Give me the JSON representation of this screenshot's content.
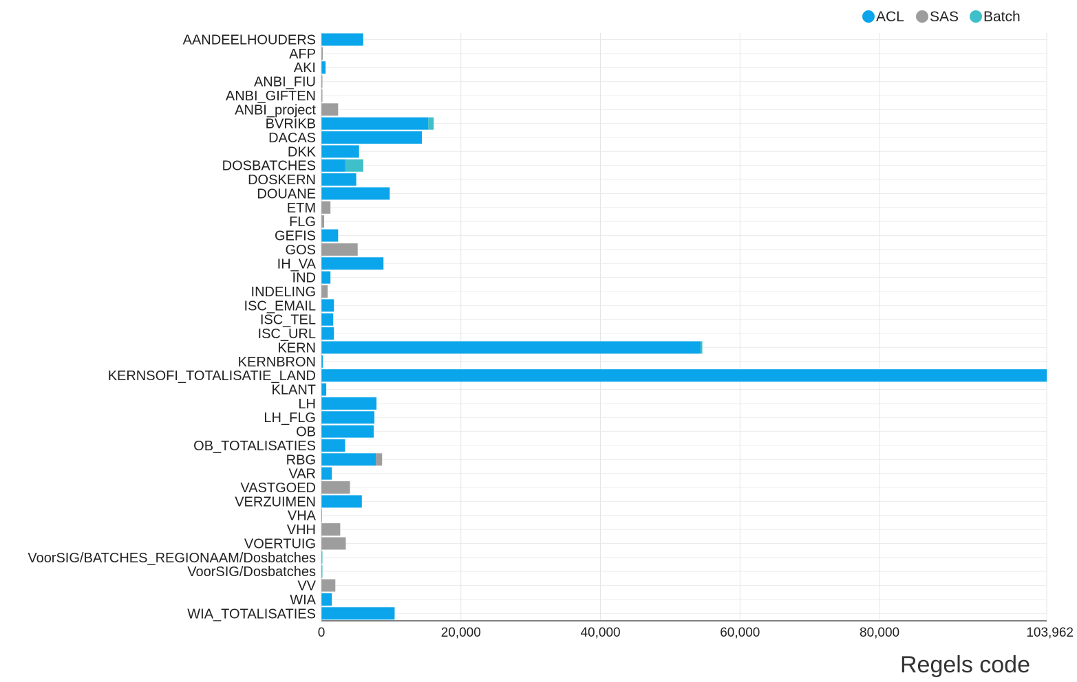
{
  "chart_data": {
    "type": "bar",
    "orientation": "horizontal",
    "stacked": true,
    "xlabel": "Regels code",
    "ylabel": "",
    "xlim": [
      0,
      103962
    ],
    "xticks": [
      0,
      20000,
      40000,
      60000,
      80000,
      103962
    ],
    "xtick_labels": [
      "0",
      "20,000",
      "40,000",
      "60,000",
      "80,000",
      "103,962"
    ],
    "grid": true,
    "legend_position": "top-right",
    "categories": [
      "AANDEELHOUDERS",
      "AFP",
      "AKI",
      "ANBI_FIU",
      "ANBI_GIFTEN",
      "ANBI_project",
      "BVRIKB",
      "DACAS",
      "DKK",
      "DOSBATCHES",
      "DOSKERN",
      "DOUANE",
      "ETM",
      "FLG",
      "GEFIS",
      "GOS",
      "IH_VA",
      "IND",
      "INDELING",
      "ISC_EMAIL",
      "ISC_TEL",
      "ISC_URL",
      "KERN",
      "KERNBRON",
      "KERNSOFI_TOTALISATIE_LAND",
      "KLANT",
      "LH",
      "LH_FLG",
      "OB",
      "OB_TOTALISATIES",
      "RBG",
      "VAR",
      "VASTGOED",
      "VERZUIMEN",
      "VHA",
      "VHH",
      "VOERTUIG",
      "VoorSIG/BATCHES_REGIONAAM/Dosbatches",
      "VoorSIG/Dosbatches",
      "VV",
      "WIA",
      "WIA_TOTALISATIES"
    ],
    "series": [
      {
        "name": "ACL",
        "color": "#0aa5ea",
        "values": [
          6000,
          0,
          600,
          0,
          0,
          0,
          15300,
          14400,
          5400,
          3400,
          5000,
          9800,
          0,
          0,
          2400,
          0,
          8900,
          1300,
          0,
          1800,
          1700,
          1800,
          54300,
          200,
          103962,
          700,
          7900,
          7600,
          7500,
          3400,
          7800,
          1500,
          0,
          5800,
          0,
          0,
          0,
          0,
          0,
          0,
          1500,
          10500
        ]
      },
      {
        "name": "SAS",
        "color": "#9d9d9d",
        "values": [
          0,
          200,
          0,
          150,
          150,
          2400,
          0,
          0,
          0,
          0,
          0,
          0,
          1300,
          400,
          0,
          5200,
          0,
          0,
          900,
          0,
          0,
          0,
          0,
          0,
          0,
          0,
          0,
          0,
          0,
          0,
          900,
          0,
          4100,
          0,
          100,
          2700,
          3500,
          0,
          0,
          2000,
          0,
          0
        ]
      },
      {
        "name": "Batch",
        "color": "#3fbfc9",
        "values": [
          0,
          0,
          0,
          0,
          0,
          0,
          800,
          0,
          0,
          2600,
          0,
          0,
          0,
          0,
          0,
          0,
          0,
          0,
          0,
          0,
          0,
          0,
          300,
          0,
          0,
          0,
          0,
          0,
          0,
          0,
          0,
          0,
          0,
          0,
          0,
          0,
          0,
          150,
          150,
          0,
          0,
          0
        ]
      }
    ]
  }
}
